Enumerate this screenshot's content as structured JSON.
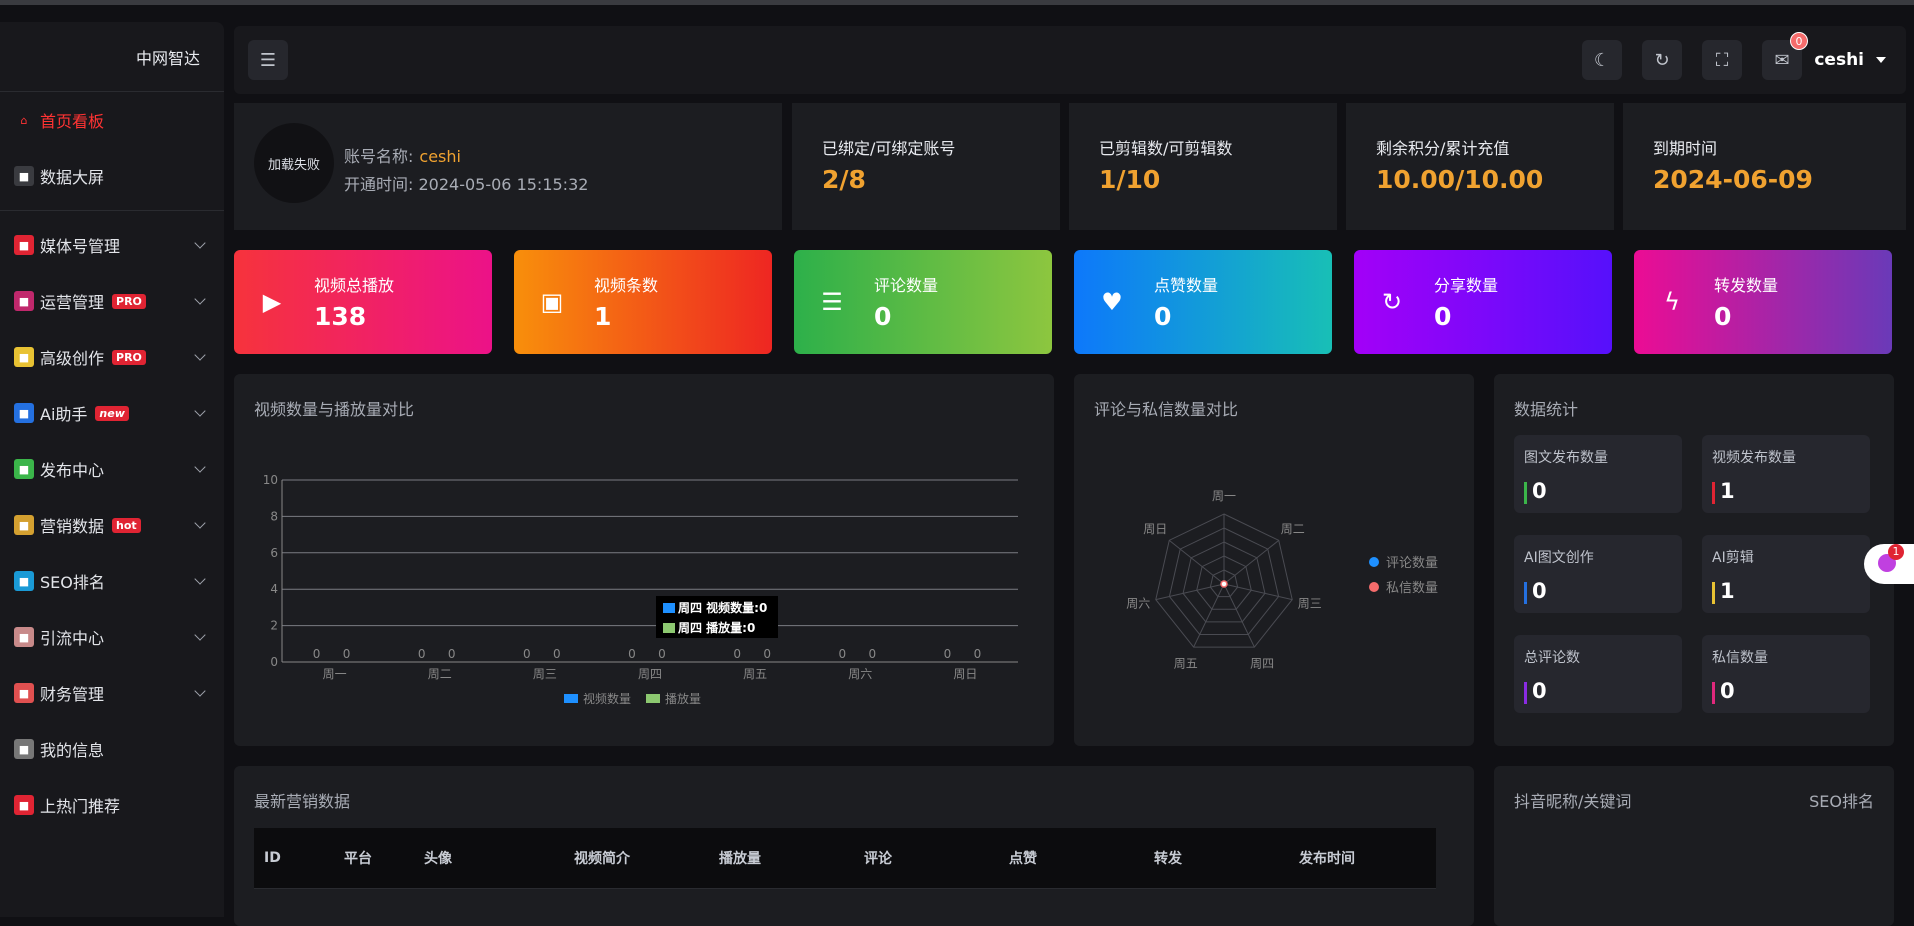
{
  "sidebar": {
    "brand": "中网智达",
    "items": [
      {
        "label": "首页看板",
        "icon": "home-icon",
        "color": "#ff3333",
        "active": true
      },
      {
        "label": "数据大屏",
        "icon": "monitor-icon",
        "color": "#3a3b40"
      },
      {
        "label": "媒体号管理",
        "icon": "media-icon",
        "color": "#e02433",
        "chevron": true
      },
      {
        "label": "运营管理",
        "icon": "ops-icon",
        "color": "#c0286c",
        "tag": "PRO",
        "chevron": true
      },
      {
        "label": "高级创作",
        "icon": "video-icon",
        "color": "#e8c233",
        "tag": "PRO",
        "chevron": true
      },
      {
        "label": "Ai助手",
        "icon": "ai-icon",
        "color": "#2470e0",
        "tag": "new",
        "chevron": true
      },
      {
        "label": "发布中心",
        "icon": "send-icon",
        "color": "#3bb54a",
        "chevron": true
      },
      {
        "label": "营销数据",
        "icon": "chart-icon",
        "color": "#d4a030",
        "tag": "hot",
        "chevron": true
      },
      {
        "label": "SEO排名",
        "icon": "seo-icon",
        "color": "#1a9ad6",
        "chevron": true
      },
      {
        "label": "引流中心",
        "icon": "funnel-icon",
        "color": "#c88a8a",
        "chevron": true
      },
      {
        "label": "财务管理",
        "icon": "finance-icon",
        "color": "#e05050",
        "chevron": true
      },
      {
        "label": "我的信息",
        "icon": "user-icon",
        "color": "#777"
      },
      {
        "label": "上热门推荐",
        "icon": "hot-icon",
        "color": "#e02433"
      }
    ]
  },
  "header": {
    "user": "ceshi",
    "mail_count": "0"
  },
  "account": {
    "avatar_text": "加载失败",
    "name_label": "账号名称:",
    "name": "ceshi",
    "open_label": "开通时间:",
    "open_time": "2024-05-06 15:15:32"
  },
  "stats": [
    {
      "label": "已绑定/可绑定账号",
      "value": "2/8"
    },
    {
      "label": "已剪辑数/可剪辑数",
      "value": "1/10"
    },
    {
      "label": "剩余积分/累计充值",
      "value": "10.00/10.00"
    },
    {
      "label": "到期时间",
      "value": "2024-06-09"
    }
  ],
  "cards": [
    {
      "label": "视频总播放",
      "value": "138",
      "icon": "play-icon",
      "from": "#f6333c",
      "to": "#ec1288"
    },
    {
      "label": "视频条数",
      "value": "1",
      "icon": "film-icon",
      "from": "#f88f0b",
      "to": "#ee2622"
    },
    {
      "label": "评论数量",
      "value": "0",
      "icon": "comment-icon",
      "from": "#2db04a",
      "to": "#8dc63f"
    },
    {
      "label": "点赞数量",
      "value": "0",
      "icon": "heart-icon",
      "from": "#0d78fb",
      "to": "#18bfb6"
    },
    {
      "label": "分享数量",
      "value": "0",
      "icon": "share-icon",
      "from": "#a300f8",
      "to": "#5610fb"
    },
    {
      "label": "转发数量",
      "value": "0",
      "icon": "bolt-icon",
      "from": "#ec0c94",
      "to": "#6a3ab8"
    }
  ],
  "bar_panel": {
    "title": "视频数量与播放量对比",
    "tooltip": [
      "周四 视频数量:0",
      "周四 播放量:0"
    ]
  },
  "radar_panel": {
    "title": "评论与私信数量对比"
  },
  "stats_panel": {
    "title": "数据统计",
    "items": [
      {
        "label": "图文发布数量",
        "value": "0",
        "color": "#3bb54a"
      },
      {
        "label": "视频发布数量",
        "value": "1",
        "color": "#e02433"
      },
      {
        "label": "AI图文创作",
        "value": "0",
        "color": "#2470e0"
      },
      {
        "label": "AI剪辑",
        "value": "1",
        "color": "#e8c233"
      },
      {
        "label": "总评论数",
        "value": "0",
        "color": "#8a2be2"
      },
      {
        "label": "私信数量",
        "value": "0",
        "color": "#e0287c"
      }
    ]
  },
  "table_panel": {
    "title": "最新营销数据",
    "columns": [
      "ID",
      "平台",
      "头像",
      "视频简介",
      "播放量",
      "评论",
      "点赞",
      "转发",
      "发布时间"
    ]
  },
  "seo_panel": {
    "left": "抖音昵称/关键词",
    "right": "SEO排名"
  },
  "float_badge": "1",
  "chart_data": [
    {
      "type": "bar",
      "categories": [
        "周一",
        "周二",
        "周三",
        "周四",
        "周五",
        "周六",
        "周日"
      ],
      "series": [
        {
          "name": "视频数量",
          "values": [
            0,
            0,
            0,
            0,
            0,
            0,
            0
          ],
          "color": "#1e90ff"
        },
        {
          "name": "播放量",
          "values": [
            0,
            0,
            0,
            0,
            0,
            0,
            0
          ],
          "color": "#8cc870"
        }
      ],
      "ylim": [
        0,
        10
      ],
      "yticks": [
        0,
        2,
        4,
        6,
        8,
        10
      ],
      "grid": true,
      "legend": "bottom"
    },
    {
      "type": "radar",
      "indicators": [
        "周一",
        "周二",
        "周三",
        "周四",
        "周五",
        "周六",
        "周日"
      ],
      "series": [
        {
          "name": "评论数量",
          "values": [
            0,
            0,
            0,
            0,
            0,
            0,
            0
          ],
          "color": "#1e90ff"
        },
        {
          "name": "私信数量",
          "values": [
            0,
            0,
            0,
            0,
            0,
            0,
            0
          ],
          "color": "#f56c6c"
        }
      ],
      "legend": "right"
    }
  ]
}
